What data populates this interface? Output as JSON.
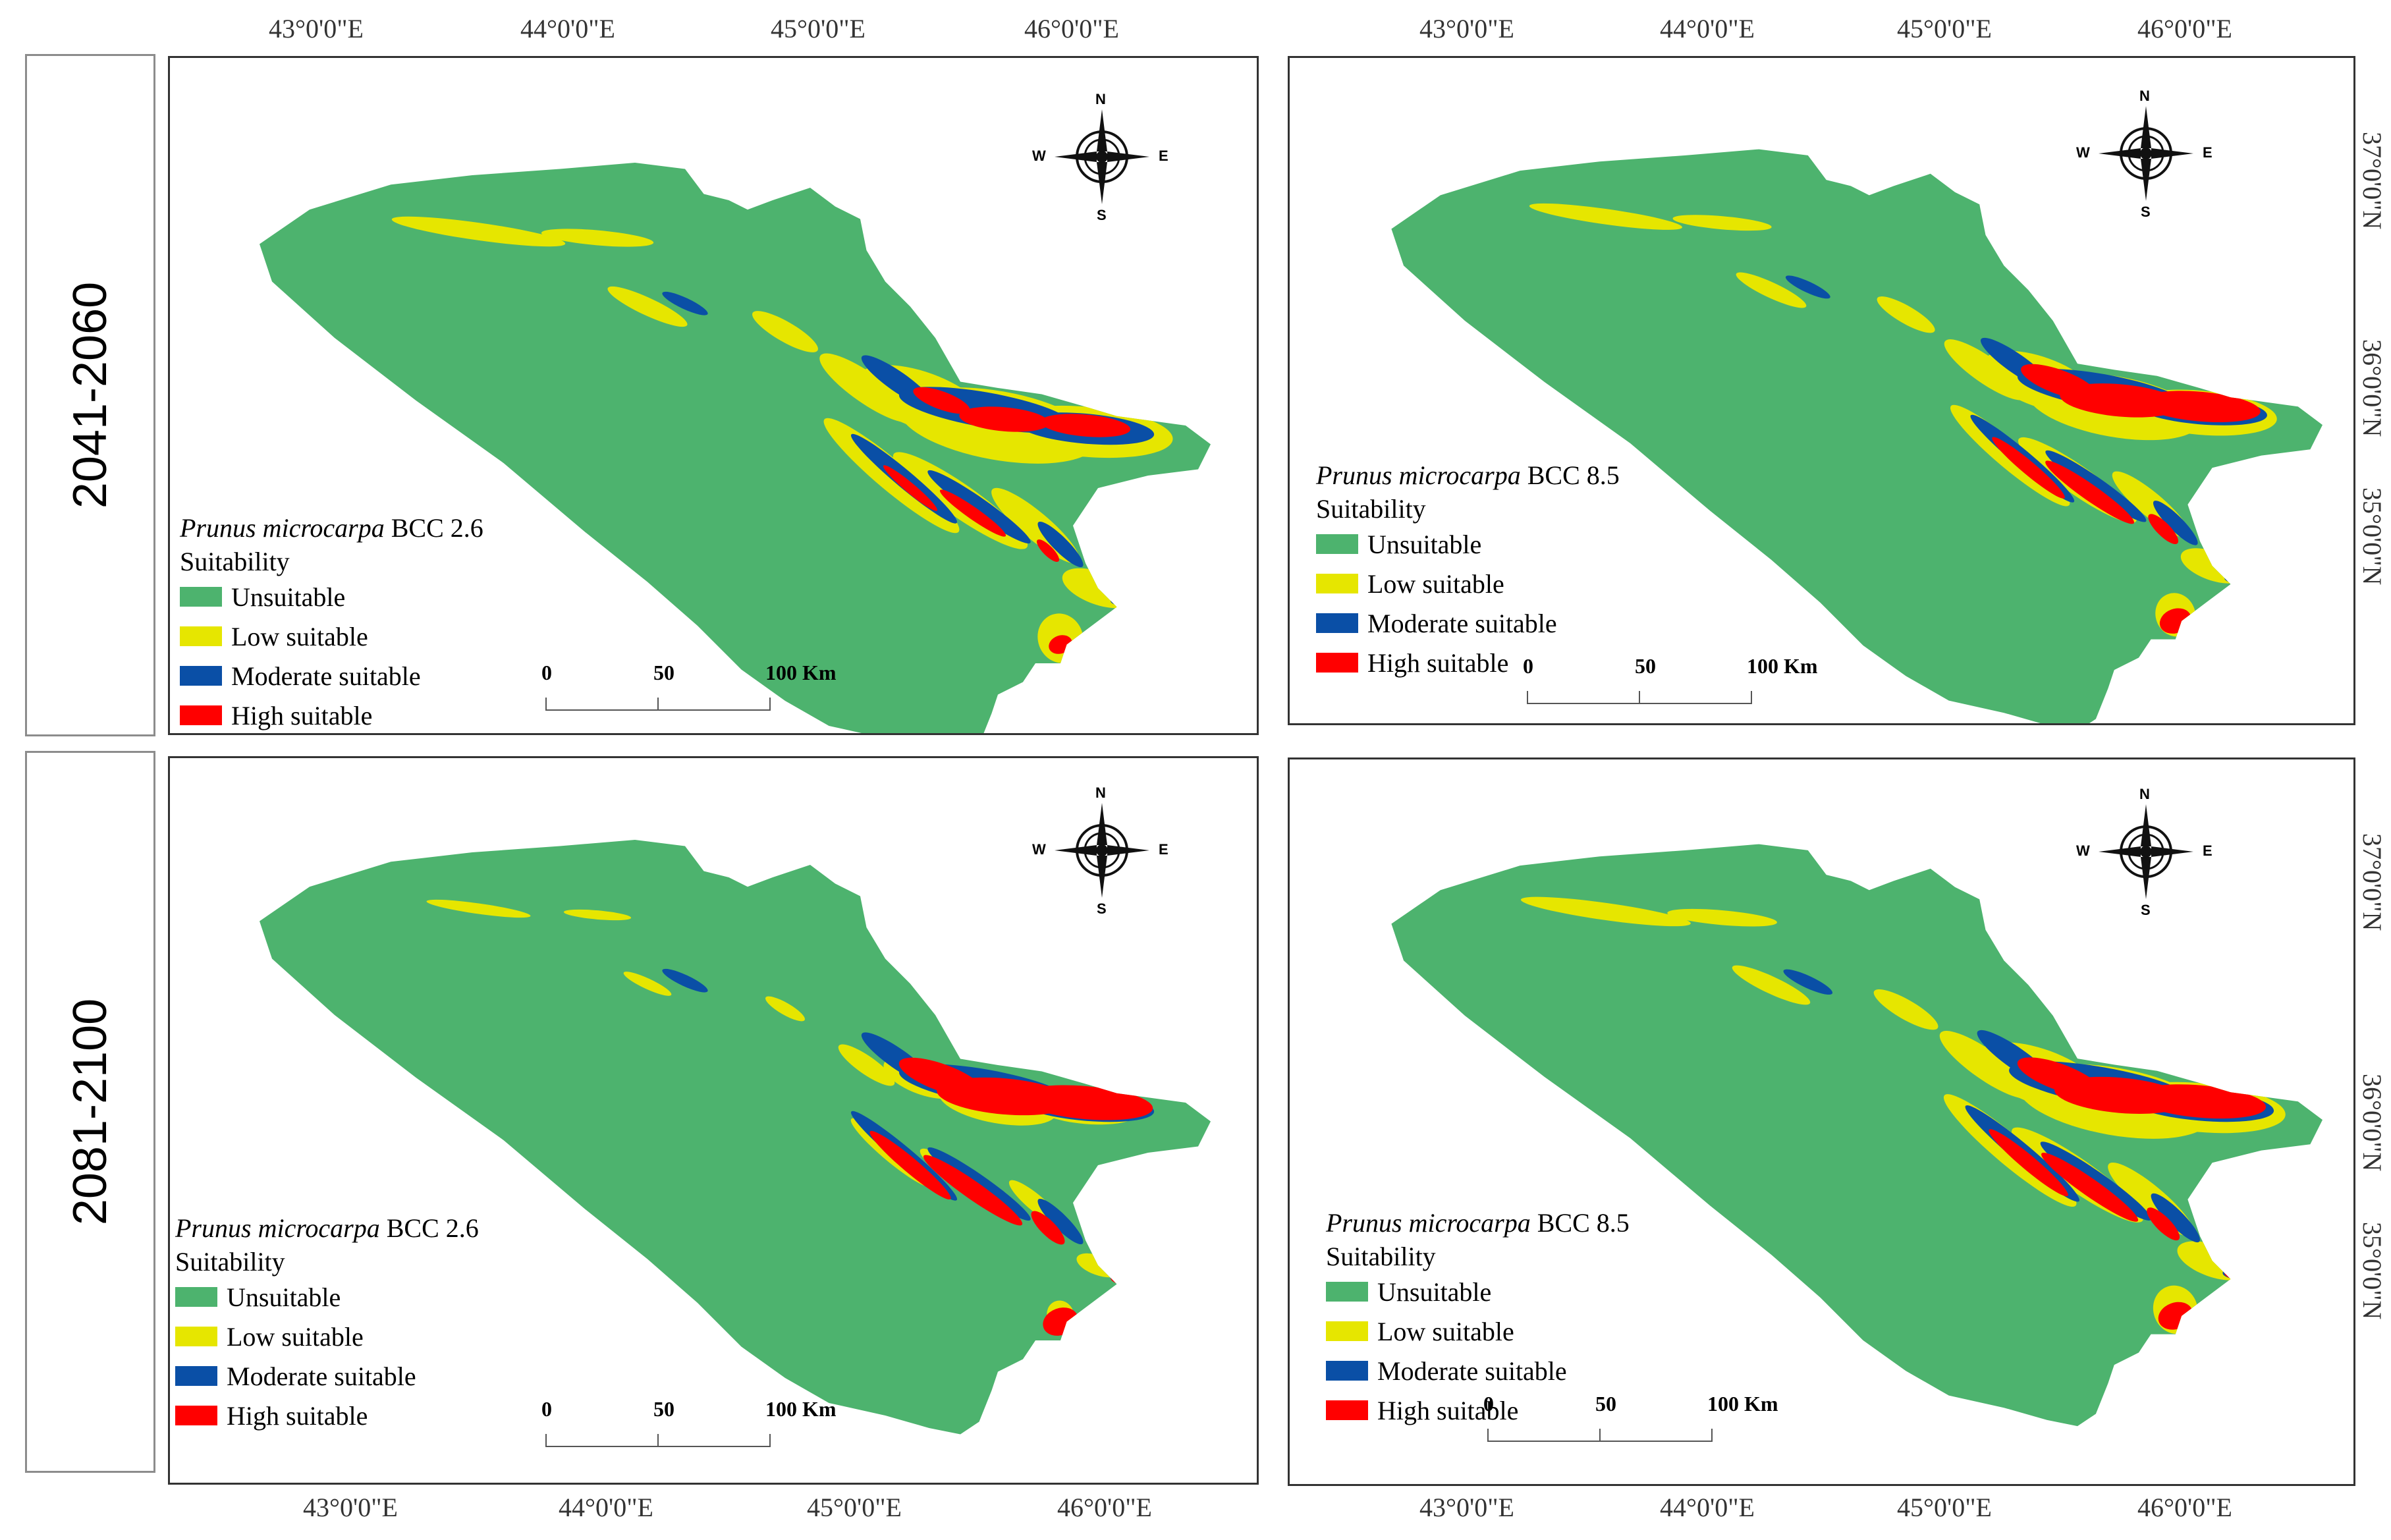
{
  "periods": [
    "2041-2060",
    "2081-2100"
  ],
  "longitude_labels": [
    "43°0'0\"E",
    "44°0'0\"E",
    "45°0'0\"E",
    "46°0'0\"E"
  ],
  "latitude_labels": [
    "37°0'0\"N",
    "36°0'0\"N",
    "35°0'0\"N"
  ],
  "panels": [
    {
      "species": "Prunus microcarpa",
      "scenario": "BCC 2.6",
      "period": "2041-2060"
    },
    {
      "species": "Prunus microcarpa",
      "scenario": "BCC 8.5",
      "period": "2041-2060"
    },
    {
      "species": "Prunus microcarpa",
      "scenario": "BCC 2.6",
      "period": "2081-2100"
    },
    {
      "species": "Prunus microcarpa",
      "scenario": "BCC 8.5",
      "period": "2081-2100"
    }
  ],
  "legend": {
    "title": "Suitability",
    "items": [
      {
        "label": "Unsuitable",
        "color": "#4db36e"
      },
      {
        "label": "Low suitable",
        "color": "#e6e600"
      },
      {
        "label": "Moderate suitable",
        "color": "#0a4fa6"
      },
      {
        "label": "High suitable",
        "color": "#ff0000"
      }
    ]
  },
  "scale_bar": {
    "labels": [
      "0",
      "50",
      "100 Km"
    ]
  },
  "compass": {
    "n": "N",
    "s": "S",
    "e": "E",
    "w": "W"
  },
  "colors": {
    "unsuitable": "#4db36e",
    "low": "#e6e600",
    "moderate": "#0a4fa6",
    "high": "#ff0000"
  }
}
